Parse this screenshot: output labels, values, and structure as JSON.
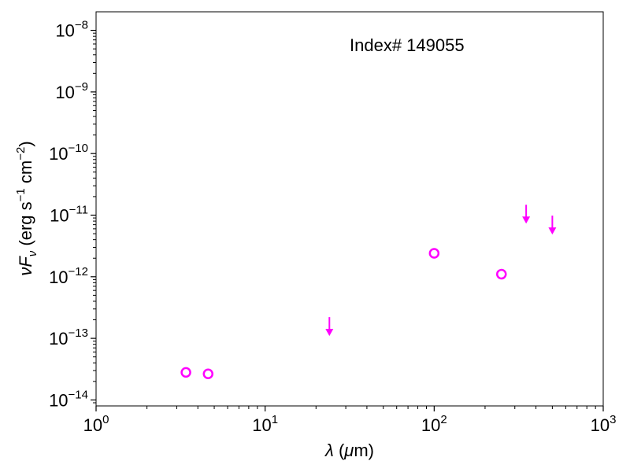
{
  "chart_data": {
    "type": "scatter",
    "title": "",
    "annotation": "Index# 149055",
    "xlabel": "λ (μm)",
    "ylabel": "νFν (erg s⁻¹ cm⁻²)",
    "xscale": "log",
    "yscale": "log",
    "xlim": [
      1,
      1000
    ],
    "ylim": [
      8e-15,
      2e-08
    ],
    "grid": false,
    "x_ticks": [
      {
        "value": 1,
        "base": "10",
        "exp": "0"
      },
      {
        "value": 10,
        "base": "10",
        "exp": "1"
      },
      {
        "value": 100,
        "base": "10",
        "exp": "2"
      },
      {
        "value": 1000,
        "base": "10",
        "exp": "3"
      }
    ],
    "y_ticks": [
      {
        "value": 1e-14,
        "base": "10",
        "exp": "−14"
      },
      {
        "value": 1e-13,
        "base": "10",
        "exp": "−13"
      },
      {
        "value": 1e-12,
        "base": "10",
        "exp": "−12"
      },
      {
        "value": 1e-11,
        "base": "10",
        "exp": "−11"
      },
      {
        "value": 1e-10,
        "base": "10",
        "exp": "−10"
      },
      {
        "value": 1e-09,
        "base": "10",
        "exp": "−9"
      },
      {
        "value": 1e-08,
        "base": "10",
        "exp": "−8"
      }
    ],
    "color": "#ff00ff",
    "series": [
      {
        "marker": "open-circle",
        "points": [
          {
            "x": 3.4,
            "y": 2.8e-14
          },
          {
            "x": 4.6,
            "y": 2.65e-14
          },
          {
            "x": 100,
            "y": 2.4e-12
          },
          {
            "x": 250,
            "y": 1.1e-12
          }
        ]
      },
      {
        "marker": "upper-limit-arrow",
        "points": [
          {
            "x": 24,
            "y": 1.8e-13
          },
          {
            "x": 350,
            "y": 1.2e-11
          },
          {
            "x": 500,
            "y": 8e-12
          }
        ]
      }
    ]
  }
}
